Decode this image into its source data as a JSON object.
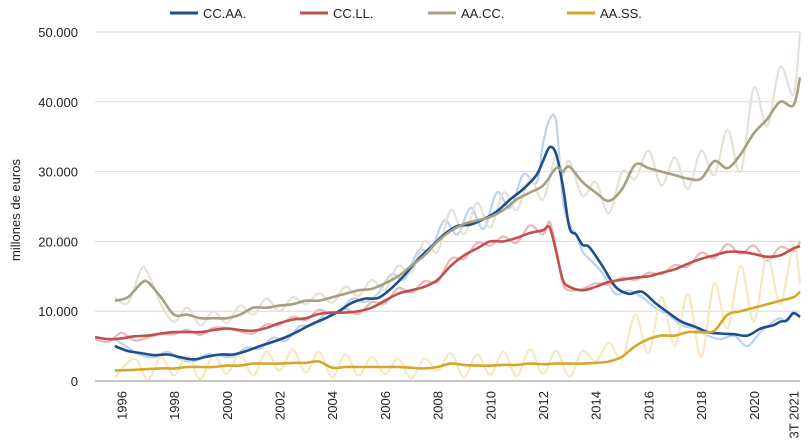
{
  "chart_data": {
    "type": "line",
    "ylabel": "millones de euros",
    "ylim": [
      0,
      50000
    ],
    "xlim": [
      1995.0,
      2021.75
    ],
    "grid": true,
    "legend_position": "top",
    "y_ticks": [
      0,
      10000,
      20000,
      30000,
      40000,
      50000
    ],
    "y_tick_labels": [
      "0",
      "10.000",
      "20.000",
      "30.000",
      "40.000",
      "50.000"
    ],
    "x_ticks": [
      1996,
      1998,
      2000,
      2002,
      2004,
      2006,
      2008,
      2010,
      2012,
      2014,
      2016,
      2018,
      2020,
      2021.5
    ],
    "x_tick_labels": [
      "1996",
      "1998",
      "2000",
      "2002",
      "2004",
      "2006",
      "2008",
      "2010",
      "2012",
      "2014",
      "2016",
      "2018",
      "2020",
      "3T 2021"
    ],
    "series": [
      {
        "name": "CC.AA.",
        "color": "#1f4e8c",
        "faded_color": "#bcd3ee",
        "x": [
          1995.75,
          1996.25,
          1996.75,
          1997.25,
          1997.75,
          1998.25,
          1998.75,
          1999.25,
          1999.75,
          2000.25,
          2000.75,
          2001.25,
          2001.75,
          2002.25,
          2002.75,
          2003.25,
          2003.75,
          2004.25,
          2004.75,
          2005.25,
          2005.75,
          2006.25,
          2006.75,
          2007.25,
          2007.75,
          2008.25,
          2008.75,
          2009.25,
          2009.75,
          2010.25,
          2010.75,
          2011.25,
          2011.75,
          2012.0,
          2012.25,
          2012.5,
          2012.75,
          2013.0,
          2013.25,
          2013.5,
          2013.75,
          2014.25,
          2014.75,
          2015.25,
          2015.75,
          2016.25,
          2016.75,
          2017.25,
          2017.75,
          2018.25,
          2018.75,
          2019.25,
          2019.75,
          2020.25,
          2020.75,
          2021.0,
          2021.25,
          2021.5,
          2021.75
        ],
        "values": [
          5000,
          4300,
          4000,
          3700,
          3800,
          3400,
          3100,
          3500,
          3800,
          3800,
          4300,
          5000,
          5600,
          6300,
          7200,
          8200,
          9000,
          10000,
          11200,
          11800,
          11900,
          13300,
          15200,
          17400,
          19200,
          21000,
          22200,
          22400,
          23200,
          24300,
          26000,
          27500,
          29500,
          31500,
          33500,
          32500,
          28000,
          22000,
          21000,
          19500,
          19200,
          16500,
          13500,
          12500,
          12800,
          11200,
          9800,
          8500,
          7800,
          7000,
          6800,
          6700,
          6500,
          7500,
          8000,
          8500,
          8700,
          9700,
          9200
        ],
        "faded_values": [
          6000,
          4800,
          3700,
          3400,
          4200,
          3100,
          2800,
          3800,
          3600,
          3500,
          4800,
          4600,
          6200,
          5800,
          7800,
          8000,
          9600,
          9800,
          11800,
          11300,
          12600,
          15300,
          14600,
          18600,
          18800,
          23000,
          21000,
          24800,
          21800,
          27000,
          24800,
          29600,
          28400,
          34000,
          37500,
          37000,
          26000,
          22500,
          21000,
          18500,
          17500,
          15500,
          12500,
          13000,
          12000,
          10500,
          9500,
          8000,
          7500,
          6500,
          6000,
          6500,
          5000,
          7000,
          8500,
          9000,
          8500,
          10000,
          9000
        ]
      },
      {
        "name": "CC.LL.",
        "color": "#c0504d",
        "faded_color": "#eab9b7",
        "x": [
          1995.0,
          1995.5,
          1996.0,
          1996.5,
          1997.0,
          1997.5,
          1998.0,
          1998.5,
          1999.0,
          1999.5,
          2000.0,
          2000.5,
          2001.0,
          2001.5,
          2002.0,
          2002.5,
          2003.0,
          2003.5,
          2004.0,
          2004.5,
          2005.0,
          2005.5,
          2006.0,
          2006.5,
          2007.0,
          2007.5,
          2008.0,
          2008.5,
          2009.0,
          2009.5,
          2010.0,
          2010.5,
          2011.0,
          2011.5,
          2012.0,
          2012.25,
          2012.5,
          2012.75,
          2013.0,
          2013.5,
          2014.0,
          2014.5,
          2015.0,
          2015.5,
          2016.0,
          2016.5,
          2017.0,
          2017.5,
          2018.0,
          2018.5,
          2019.0,
          2019.5,
          2020.0,
          2020.5,
          2021.0,
          2021.5,
          2021.75
        ],
        "values": [
          6300,
          6000,
          6100,
          6400,
          6500,
          6800,
          7000,
          7000,
          7000,
          7300,
          7500,
          7300,
          7200,
          7600,
          8300,
          8800,
          9000,
          9600,
          9800,
          9800,
          10000,
          10500,
          11500,
          12500,
          13000,
          13500,
          14500,
          16500,
          18000,
          19000,
          20000,
          20000,
          20500,
          21200,
          21600,
          22000,
          18500,
          14500,
          13500,
          13000,
          13500,
          14200,
          14500,
          14800,
          15000,
          15500,
          16000,
          16800,
          17500,
          18000,
          18500,
          18500,
          18200,
          17800,
          18000,
          19000,
          19300
        ],
        "faded_values": [
          6000,
          5600,
          6900,
          5800,
          6200,
          6700,
          6700,
          7300,
          6600,
          7600,
          7600,
          7100,
          6800,
          8100,
          8000,
          9200,
          8700,
          10200,
          9500,
          10300,
          9600,
          11300,
          11100,
          13300,
          12700,
          14300,
          14200,
          17500,
          17500,
          19800,
          19400,
          20700,
          19800,
          22300,
          21000,
          22800,
          19000,
          14000,
          13000,
          13200,
          14000,
          13800,
          14800,
          14500,
          15500,
          15300,
          16600,
          16400,
          18400,
          17600,
          19600,
          18200,
          19400,
          17200,
          19200,
          18600,
          20000
        ]
      },
      {
        "name": "AA.CC.",
        "color": "#a69f84",
        "faded_color": "#e5e2d8",
        "x": [
          1995.75,
          1996.25,
          1996.75,
          1997.0,
          1997.5,
          1998.0,
          1998.5,
          1999.0,
          1999.5,
          2000.0,
          2000.5,
          2001.0,
          2001.5,
          2002.0,
          2002.5,
          2003.0,
          2003.5,
          2004.0,
          2004.5,
          2005.0,
          2005.5,
          2006.0,
          2006.5,
          2007.0,
          2007.5,
          2008.0,
          2008.5,
          2009.0,
          2009.5,
          2010.0,
          2010.5,
          2011.0,
          2011.5,
          2012.0,
          2012.5,
          2012.75,
          2013.0,
          2013.5,
          2014.0,
          2014.5,
          2015.0,
          2015.5,
          2016.0,
          2016.5,
          2017.0,
          2017.5,
          2018.0,
          2018.5,
          2019.0,
          2019.5,
          2020.0,
          2020.5,
          2021.0,
          2021.5,
          2021.75
        ],
        "values": [
          11500,
          12000,
          14000,
          14200,
          12000,
          9500,
          9500,
          9000,
          9000,
          9000,
          9500,
          10500,
          10500,
          10800,
          11000,
          11500,
          11500,
          12000,
          12500,
          13000,
          13200,
          14000,
          15000,
          16500,
          18000,
          20000,
          21500,
          22500,
          23000,
          23500,
          24500,
          26000,
          27000,
          28000,
          30500,
          30000,
          30700,
          28500,
          27000,
          25800,
          27500,
          31000,
          30500,
          30000,
          29500,
          29000,
          29000,
          31500,
          30500,
          32500,
          35500,
          37500,
          40000,
          39500,
          43500
        ],
        "faded_values": [
          12000,
          11200,
          16000,
          15500,
          11000,
          8500,
          10500,
          8000,
          10000,
          8300,
          10800,
          9500,
          11800,
          10000,
          12000,
          11000,
          12600,
          11200,
          13500,
          12200,
          14500,
          13000,
          16500,
          15500,
          20000,
          18500,
          24500,
          21000,
          25500,
          22000,
          27000,
          24500,
          29000,
          26000,
          32500,
          29500,
          31500,
          26500,
          28500,
          24000,
          30000,
          29000,
          33000,
          28000,
          32000,
          27500,
          33000,
          29500,
          36000,
          30000,
          42000,
          36500,
          45000,
          41000,
          50000
        ]
      },
      {
        "name": "AA.SS.",
        "color": "#d4a62a",
        "faded_color": "#f7e8c4",
        "x": [
          1995.75,
          1996.5,
          1997.0,
          1997.5,
          1998.0,
          1998.5,
          1999.0,
          1999.5,
          2000.0,
          2000.5,
          2001.0,
          2001.5,
          2002.0,
          2002.5,
          2003.0,
          2003.5,
          2004.0,
          2004.5,
          2005.0,
          2005.5,
          2006.0,
          2006.5,
          2007.0,
          2007.5,
          2008.0,
          2008.5,
          2009.0,
          2009.5,
          2010.0,
          2010.5,
          2011.0,
          2011.5,
          2012.0,
          2012.5,
          2013.0,
          2013.5,
          2014.0,
          2014.5,
          2015.0,
          2015.5,
          2016.0,
          2016.5,
          2017.0,
          2017.5,
          2018.0,
          2018.5,
          2019.0,
          2019.5,
          2020.0,
          2020.5,
          2021.0,
          2021.5,
          2021.75
        ],
        "values": [
          1500,
          1600,
          1700,
          1800,
          1800,
          2000,
          2000,
          2000,
          2200,
          2200,
          2500,
          2500,
          2500,
          2600,
          2600,
          2800,
          1900,
          2000,
          2000,
          2000,
          2000,
          2000,
          1900,
          1800,
          2000,
          2500,
          2300,
          2200,
          2200,
          2300,
          2300,
          2500,
          2400,
          2500,
          2500,
          2500,
          2600,
          2800,
          3500,
          5000,
          6000,
          6500,
          6500,
          7000,
          7000,
          7200,
          9500,
          10000,
          10500,
          11000,
          11500,
          12000,
          12800
        ],
        "faded_values": [
          500,
          3200,
          200,
          3400,
          800,
          3600,
          300,
          3800,
          1000,
          4000,
          800,
          4200,
          1500,
          4500,
          1200,
          4200,
          500,
          3800,
          800,
          3500,
          1000,
          3200,
          400,
          3200,
          1500,
          4000,
          500,
          3800,
          900,
          4200,
          700,
          4500,
          1000,
          4400,
          600,
          4300,
          2800,
          5500,
          3200,
          9500,
          4000,
          12000,
          5000,
          12500,
          3500,
          14000,
          7500,
          16500,
          8500,
          18000,
          11000,
          19500,
          14000
        ]
      }
    ]
  }
}
